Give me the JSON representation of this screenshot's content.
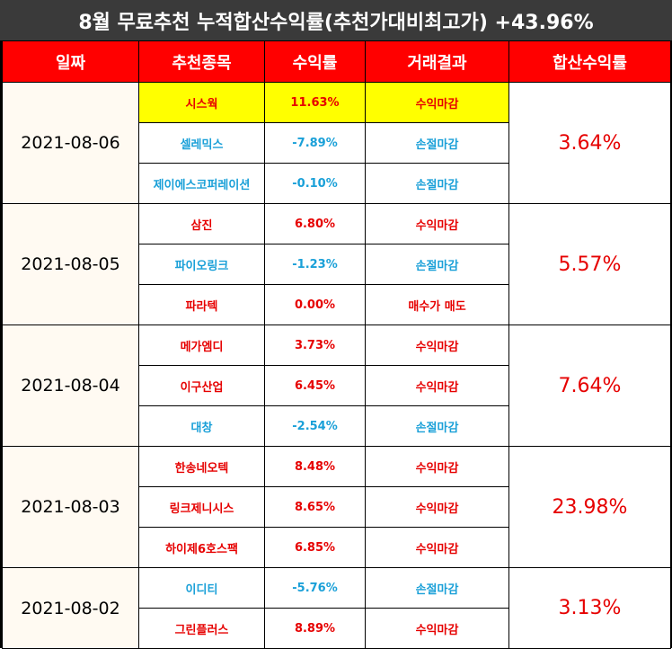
{
  "title": "8월 무료추천 누적합산수익률(추천가대비최고가) +43.96%",
  "headers": [
    "일짜",
    "추천종목",
    "수익률",
    "거래결과",
    "합산수익률"
  ],
  "colors": {
    "header_bg": "#ff0000",
    "title_bg": "#3a3a3a",
    "profit": "#e60000",
    "loss": "#1aa0d8",
    "highlight": "#ffff00"
  },
  "groups": [
    {
      "date": "2021-08-06",
      "total": "3.64%",
      "rows": [
        {
          "stock": "시스웍",
          "return": "11.63%",
          "result": "수익마감",
          "tone": "red",
          "highlight": true
        },
        {
          "stock": "셀레믹스",
          "return": "-7.89%",
          "result": "손절마감",
          "tone": "blue",
          "highlight": false
        },
        {
          "stock": "제이에스코퍼레이션",
          "return": "-0.10%",
          "result": "손절마감",
          "tone": "blue",
          "highlight": false
        }
      ]
    },
    {
      "date": "2021-08-05",
      "total": "5.57%",
      "rows": [
        {
          "stock": "삼진",
          "return": "6.80%",
          "result": "수익마감",
          "tone": "red",
          "highlight": false
        },
        {
          "stock": "파이오링크",
          "return": "-1.23%",
          "result": "손절마감",
          "tone": "blue",
          "highlight": false
        },
        {
          "stock": "파라텍",
          "return": "0.00%",
          "result": "매수가 매도",
          "tone": "red",
          "highlight": false
        }
      ]
    },
    {
      "date": "2021-08-04",
      "total": "7.64%",
      "rows": [
        {
          "stock": "메가엠디",
          "return": "3.73%",
          "result": "수익마감",
          "tone": "red",
          "highlight": false
        },
        {
          "stock": "이구산업",
          "return": "6.45%",
          "result": "수익마감",
          "tone": "red",
          "highlight": false
        },
        {
          "stock": "대창",
          "return": "-2.54%",
          "result": "손절마감",
          "tone": "blue",
          "highlight": false
        }
      ]
    },
    {
      "date": "2021-08-03",
      "total": "23.98%",
      "rows": [
        {
          "stock": "한송네오텍",
          "return": "8.48%",
          "result": "수익마감",
          "tone": "red",
          "highlight": false
        },
        {
          "stock": "링크제니시스",
          "return": "8.65%",
          "result": "수익마감",
          "tone": "red",
          "highlight": false
        },
        {
          "stock": "하이제6호스팩",
          "return": "6.85%",
          "result": "수익마감",
          "tone": "red",
          "highlight": false
        }
      ]
    },
    {
      "date": "2021-08-02",
      "total": "3.13%",
      "rows": [
        {
          "stock": "이디티",
          "return": "-5.76%",
          "result": "손절마감",
          "tone": "blue",
          "highlight": false
        },
        {
          "stock": "그린플러스",
          "return": "8.89%",
          "result": "수익마감",
          "tone": "red",
          "highlight": false
        }
      ]
    }
  ]
}
